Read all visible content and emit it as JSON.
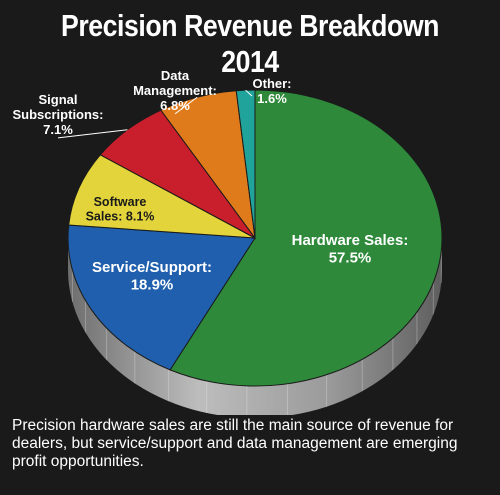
{
  "chart_data": {
    "type": "pie",
    "title": "Precision Revenue Breakdown 2014",
    "slices": [
      {
        "label": "Hardware Sales:",
        "value": 57.5,
        "value_label": "57.5%",
        "color": "#2e8a3a",
        "text_color": "#ffffff"
      },
      {
        "label": "Service/Support:",
        "value": 18.9,
        "value_label": "18.9%",
        "color": "#1f5fad",
        "text_color": "#ffffff"
      },
      {
        "label": "Software Sales:",
        "value": 8.1,
        "value_label": "8.1%",
        "color": "#e2d43a",
        "text_color": "#1a1a1a"
      },
      {
        "label": "Signal Subscriptions:",
        "value": 7.1,
        "value_label": "7.1%",
        "color": "#c91f2c",
        "text_color": "#ffffff"
      },
      {
        "label": "Data Management:",
        "value": 6.8,
        "value_label": "6.8%",
        "color": "#e07b1c",
        "text_color": "#ffffff"
      },
      {
        "label": "Other:",
        "value": 1.6,
        "value_label": "1.6%",
        "color": "#20a39a",
        "text_color": "#ffffff"
      }
    ]
  },
  "caption": "Precision hardware sales are still the main source of revenue for dealers, but service/support and data management are emerging profit opportunities."
}
